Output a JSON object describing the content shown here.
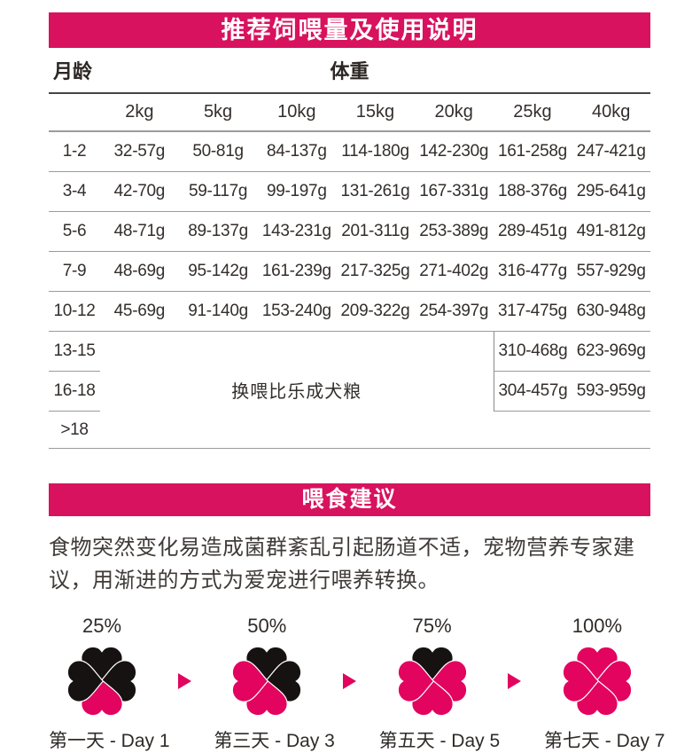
{
  "colors": {
    "accent": "#d8125e",
    "heart_pink": "#e2045f",
    "heart_black": "#171212"
  },
  "feeding_section": {
    "title": "推荐饲喂量及使用说明",
    "age_header": "月龄",
    "weight_header": "体重",
    "weight_columns": [
      "2kg",
      "5kg",
      "10kg",
      "15kg",
      "20kg",
      "25kg",
      "40kg"
    ],
    "rows": [
      {
        "age": "1-2",
        "values": [
          "32-57g",
          "50-81g",
          "84-137g",
          "114-180g",
          "142-230g",
          "161-258g",
          "247-421g"
        ]
      },
      {
        "age": "3-4",
        "values": [
          "42-70g",
          "59-117g",
          "99-197g",
          "131-261g",
          "167-331g",
          "188-376g",
          "295-641g"
        ]
      },
      {
        "age": "5-6",
        "values": [
          "48-71g",
          "89-137g",
          "143-231g",
          "201-311g",
          "253-389g",
          "289-451g",
          "491-812g"
        ]
      },
      {
        "age": "7-9",
        "values": [
          "48-69g",
          "95-142g",
          "161-239g",
          "217-325g",
          "271-402g",
          "316-477g",
          "557-929g"
        ]
      },
      {
        "age": "10-12",
        "values": [
          "45-69g",
          "91-140g",
          "153-240g",
          "209-322g",
          "254-397g",
          "317-475g",
          "630-948g"
        ]
      }
    ],
    "bottom_rows": [
      {
        "age": "13-15",
        "v25kg": "310-468g",
        "v40kg": "623-969g"
      },
      {
        "age": "16-18",
        "v25kg": "304-457g",
        "v40kg": "593-959g"
      },
      {
        "age": ">18",
        "v25kg": "",
        "v40kg": ""
      }
    ],
    "merged_note": "换喂比乐成犬粮"
  },
  "advice_section": {
    "title": "喂食建议",
    "body": "食物突然变化易造成菌群紊乱引起肠道不适，宠物营养专家建议，用渐进的方式为爱宠进行喂养转换。",
    "steps": [
      {
        "percent": "25%",
        "day": "第一天 - Day 1",
        "leaves": [
          "black",
          "black",
          "pink",
          "black"
        ]
      },
      {
        "percent": "50%",
        "day": "第三天 - Day 3",
        "leaves": [
          "black",
          "black",
          "pink",
          "pink"
        ]
      },
      {
        "percent": "75%",
        "day": "第五天 - Day 5",
        "leaves": [
          "black",
          "pink",
          "pink",
          "pink"
        ]
      },
      {
        "percent": "100%",
        "day": "第七天 - Day 7",
        "leaves": [
          "pink",
          "pink",
          "pink",
          "pink"
        ]
      }
    ]
  }
}
